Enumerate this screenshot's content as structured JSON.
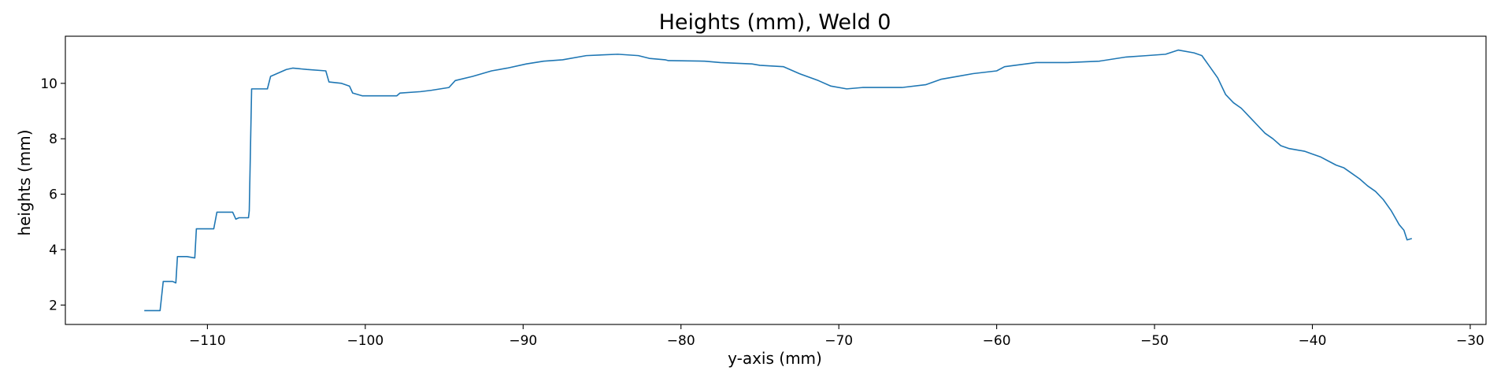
{
  "chart_data": {
    "type": "line",
    "title": "Heights (mm), Weld 0",
    "xlabel": "y-axis (mm)",
    "ylabel": "heights (mm)",
    "xlim": [
      -119,
      -29
    ],
    "ylim": [
      1.3,
      11.7
    ],
    "xticks": [
      -110,
      -100,
      -90,
      -80,
      -70,
      -60,
      -50,
      -40,
      -30
    ],
    "xtick_labels": [
      "−110",
      "−100",
      "−90",
      "−80",
      "−70",
      "−60",
      "−50",
      "−40",
      "−30"
    ],
    "yticks": [
      2,
      4,
      6,
      8,
      10
    ],
    "ytick_labels": [
      "2",
      "4",
      "6",
      "8",
      "10"
    ],
    "grid": false,
    "series": [
      {
        "color": "#1f77b4",
        "x": [
          -114.0,
          -113.0,
          -112.8,
          -112.2,
          -112.0,
          -111.9,
          -111.3,
          -110.8,
          -110.7,
          -110.5,
          -109.6,
          -109.4,
          -108.4,
          -108.2,
          -108.0,
          -107.4,
          -107.35,
          -107.2,
          -106.2,
          -106.0,
          -105.0,
          -104.6,
          -103.7,
          -102.5,
          -102.3,
          -101.5,
          -101.0,
          -100.8,
          -100.2,
          -99.8,
          -98.0,
          -97.8,
          -96.5,
          -95.8,
          -94.7,
          -94.3,
          -93.2,
          -92.0,
          -91.0,
          -89.8,
          -88.7,
          -87.5,
          -86.0,
          -84.0,
          -82.7,
          -82.0,
          -81.0,
          -80.8,
          -78.5,
          -77.5,
          -75.5,
          -75.0,
          -73.5,
          -72.5,
          -71.3,
          -70.5,
          -69.5,
          -68.5,
          -67.5,
          -66.0,
          -64.5,
          -63.5,
          -62.5,
          -61.5,
          -60.0,
          -59.5,
          -57.5,
          -55.5,
          -53.5,
          -51.8,
          -50.5,
          -49.3,
          -48.5,
          -47.5,
          -47.0,
          -46.5,
          -46.0,
          -45.5,
          -45.0,
          -44.5,
          -44.0,
          -43.5,
          -43.0,
          -42.5,
          -42.0,
          -41.5,
          -41.0,
          -40.5,
          -40.0,
          -39.5,
          -39.0,
          -38.5,
          -38.0,
          -37.5,
          -37.0,
          -36.5,
          -36.0,
          -35.5,
          -35.0,
          -34.7,
          -34.5,
          -34.2,
          -34.0,
          -33.7
        ],
        "y": [
          1.8,
          1.8,
          2.85,
          2.85,
          2.8,
          3.75,
          3.75,
          3.7,
          4.75,
          4.75,
          4.75,
          5.35,
          5.35,
          5.1,
          5.15,
          5.15,
          5.4,
          9.8,
          9.8,
          10.25,
          10.5,
          10.55,
          10.5,
          10.45,
          10.05,
          10.0,
          9.9,
          9.65,
          9.55,
          9.55,
          9.55,
          9.65,
          9.7,
          9.75,
          9.85,
          10.1,
          10.25,
          10.45,
          10.55,
          10.7,
          10.8,
          10.85,
          11.0,
          11.05,
          11.0,
          10.9,
          10.85,
          10.82,
          10.8,
          10.75,
          10.7,
          10.65,
          10.6,
          10.35,
          10.1,
          9.9,
          9.8,
          9.85,
          9.85,
          9.85,
          9.95,
          10.15,
          10.25,
          10.35,
          10.45,
          10.6,
          10.75,
          10.75,
          10.8,
          10.95,
          11.0,
          11.05,
          11.2,
          11.1,
          11.0,
          10.6,
          10.2,
          9.6,
          9.3,
          9.1,
          8.8,
          8.5,
          8.2,
          8.0,
          7.75,
          7.65,
          7.6,
          7.55,
          7.45,
          7.35,
          7.2,
          7.05,
          6.95,
          6.75,
          6.55,
          6.3,
          6.1,
          5.8,
          5.4,
          5.1,
          4.9,
          4.7,
          4.35,
          4.4
        ]
      }
    ]
  }
}
